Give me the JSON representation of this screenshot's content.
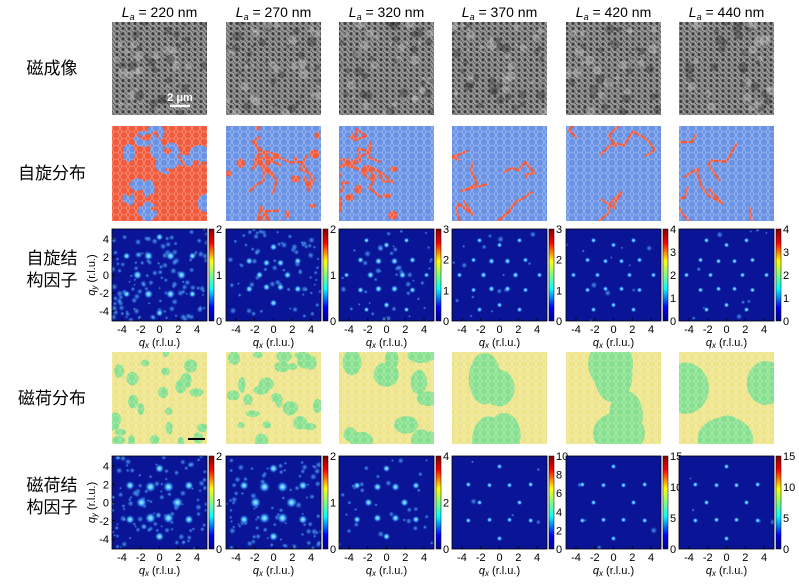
{
  "columns": [
    {
      "symbol": "L",
      "sub": "a",
      "value": " = 220 nm"
    },
    {
      "symbol": "L",
      "sub": "a",
      "value": " = 270 nm"
    },
    {
      "symbol": "L",
      "sub": "a",
      "value": " = 320 nm"
    },
    {
      "symbol": "L",
      "sub": "a",
      "value": " = 370 nm"
    },
    {
      "symbol": "L",
      "sub": "a",
      "value": " = 420 nm"
    },
    {
      "symbol": "L",
      "sub": "a",
      "value": " = 440 nm"
    }
  ],
  "rows": {
    "magnetic_imaging": {
      "label": "磁成像",
      "scalebar": "2 μm"
    },
    "spin_distribution": {
      "label": "自旋分布"
    },
    "spin_structure_factor": {
      "label_line1": "自旋结",
      "label_line2": "构因子",
      "colorbar_max": [
        2,
        2,
        3,
        3,
        4,
        4
      ],
      "colorbar_ticks": [
        [
          0,
          1,
          2
        ],
        [
          0,
          1,
          2
        ],
        [
          0,
          1,
          2,
          3
        ],
        [
          0,
          1,
          2,
          3
        ],
        [
          0,
          1,
          2,
          3,
          4
        ],
        [
          0,
          1,
          2,
          3,
          4
        ]
      ]
    },
    "charge_distribution": {
      "label": "磁荷分布"
    },
    "charge_structure_factor": {
      "label_line1": "磁荷结",
      "label_line2": "构因子",
      "colorbar_max": [
        2,
        2,
        4,
        10,
        15,
        15
      ],
      "colorbar_ticks": [
        [
          0,
          1,
          2
        ],
        [
          0,
          1,
          2
        ],
        [
          0,
          2,
          4
        ],
        [
          0,
          2,
          4,
          6,
          8,
          10
        ],
        [
          0,
          5,
          10,
          15
        ],
        [
          0,
          5,
          10,
          15
        ]
      ]
    }
  },
  "axes": {
    "x_label_main": "q",
    "x_label_sub": "x",
    "x_label_unit": " (r.l.u.)",
    "y_label_main": "q",
    "y_label_sub": "y",
    "y_label_unit": " (r.l.u.)",
    "x_ticks": [
      "-4",
      "-2",
      "0",
      "2",
      "4"
    ],
    "y_ticks": [
      "4",
      "2",
      "0",
      "-2",
      "-4"
    ]
  },
  "colors": {
    "spin_blue": "#6a93e6",
    "spin_red": "#f25a3c",
    "charge_yellow": "#eee48a",
    "charge_green": "#86e08e",
    "sf_background": "#0a1496"
  }
}
